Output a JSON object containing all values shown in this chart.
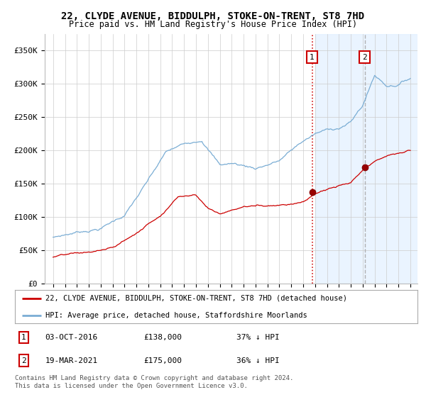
{
  "title": "22, CLYDE AVENUE, BIDDULPH, STOKE-ON-TRENT, ST8 7HD",
  "subtitle": "Price paid vs. HM Land Registry's House Price Index (HPI)",
  "ylabel_ticks": [
    "£0",
    "£50K",
    "£100K",
    "£150K",
    "£200K",
    "£250K",
    "£300K",
    "£350K"
  ],
  "ytick_values": [
    0,
    50000,
    100000,
    150000,
    200000,
    250000,
    300000,
    350000
  ],
  "ylim": [
    0,
    375000
  ],
  "background_color": "#ffffff",
  "plot_bg_color": "#ffffff",
  "grid_color": "#cccccc",
  "hpi_color": "#7aadd4",
  "price_color": "#cc0000",
  "shade_color": "#ddeeff",
  "sale1_year": 2016.75,
  "sale1_price": 138000,
  "sale1_date": "03-OCT-2016",
  "sale1_label": "37% ↓ HPI",
  "sale2_year": 2021.17,
  "sale2_price": 175000,
  "sale2_date": "19-MAR-2021",
  "sale2_label": "36% ↓ HPI",
  "legend_line1": "22, CLYDE AVENUE, BIDDULPH, STOKE-ON-TRENT, ST8 7HD (detached house)",
  "legend_line2": "HPI: Average price, detached house, Staffordshire Moorlands",
  "footnote": "Contains HM Land Registry data © Crown copyright and database right 2024.\nThis data is licensed under the Open Government Licence v3.0.",
  "start_year": 1995,
  "end_year": 2025
}
